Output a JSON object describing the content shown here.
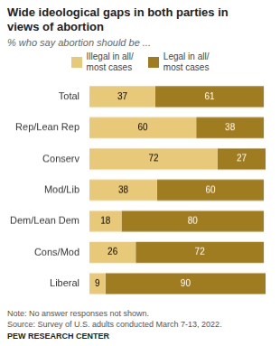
{
  "chart_data": {
    "type": "bar",
    "orientation": "horizontal",
    "stacked": true,
    "title": "Wide ideological gaps in both parties in\nviews of abortion",
    "subtitle": "% who say abortion should be ...",
    "categories": [
      "Total",
      "Rep/Lean Rep",
      "Conserv",
      "Mod/Lib",
      "Dem/Lean Dem",
      "Cons/Mod",
      "Liberal"
    ],
    "series": [
      {
        "name": "Illegal in all/\nmost cases",
        "color": "#E8C97A",
        "values": [
          37,
          60,
          72,
          38,
          18,
          26,
          9
        ]
      },
      {
        "name": "Legal in all/\nmost cases",
        "color": "#A07C20",
        "values": [
          61,
          38,
          27,
          60,
          80,
          72,
          90
        ]
      }
    ],
    "data_labels": true,
    "tick_labels": "y",
    "grid": false,
    "annotations": [
      "Note: No answer responses not shown.",
      "Source: Survey of U.S. adults conducted March 7-13, 2022.",
      "PEW RESEARCH CENTER"
    ]
  }
}
